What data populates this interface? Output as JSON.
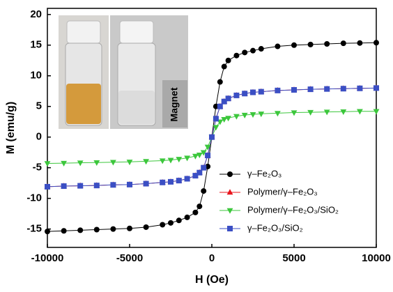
{
  "chart_data": {
    "type": "line",
    "x_label": "H (Oe)",
    "y_label": "M (emu/g)",
    "inset_label": "Magnet",
    "xlim": [
      -10000,
      10000
    ],
    "xticks": [
      -10000,
      -5000,
      0,
      5000,
      10000
    ],
    "ylim": [
      -18,
      21
    ],
    "yticks": [
      -15,
      -10,
      -5,
      0,
      5,
      10,
      15,
      20
    ],
    "legend": "lower right",
    "x": [
      -10000,
      -9000,
      -8000,
      -7000,
      -6000,
      -5000,
      -4000,
      -3000,
      -2500,
      -2000,
      -1500,
      -1000,
      -750,
      -500,
      -250,
      0,
      250,
      500,
      750,
      1000,
      1500,
      2000,
      2500,
      3000,
      4000,
      5000,
      6000,
      7000,
      8000,
      9000,
      10000
    ],
    "series": [
      {
        "name": "γ–Fe₂O₃",
        "color": "#000000",
        "marker": "circle",
        "values": [
          -15.4,
          -15.3,
          -15.2,
          -15.1,
          -15.0,
          -14.9,
          -14.7,
          -14.3,
          -14.0,
          -13.6,
          -13.1,
          -12.3,
          -11.3,
          -8.8,
          -4.8,
          0,
          5.0,
          9.0,
          11.5,
          12.5,
          13.3,
          13.8,
          14.1,
          14.4,
          14.8,
          15.0,
          15.1,
          15.2,
          15.3,
          15.35,
          15.4
        ]
      },
      {
        "name": "Polymer/γ–Fe₂O₃",
        "color": "#e8141c",
        "marker": "triangle-up",
        "values": [
          -8.1,
          -8.0,
          -7.95,
          -7.9,
          -7.8,
          -7.75,
          -7.6,
          -7.4,
          -7.3,
          -7.1,
          -6.8,
          -6.3,
          -5.8,
          -5.0,
          -3.0,
          0,
          3.0,
          5.0,
          5.8,
          6.3,
          6.8,
          7.1,
          7.3,
          7.4,
          7.6,
          7.7,
          7.8,
          7.85,
          7.9,
          7.95,
          8.0
        ]
      },
      {
        "name": "Polymer/γ–Fe₂O₃/SiO₂",
        "color": "#3cc73c",
        "marker": "triangle-down",
        "values": [
          -4.3,
          -4.25,
          -4.2,
          -4.15,
          -4.1,
          -4.05,
          -3.95,
          -3.85,
          -3.75,
          -3.6,
          -3.4,
          -3.1,
          -2.9,
          -2.5,
          -1.6,
          0,
          1.6,
          2.5,
          2.9,
          3.1,
          3.4,
          3.6,
          3.7,
          3.8,
          3.9,
          4.0,
          4.05,
          4.1,
          4.15,
          4.2,
          4.2
        ]
      },
      {
        "name": "γ–Fe₂O₃/SiO₂",
        "color": "#3b4fc4",
        "marker": "square",
        "values": [
          -8.1,
          -8.0,
          -7.95,
          -7.9,
          -7.8,
          -7.75,
          -7.6,
          -7.4,
          -7.3,
          -7.1,
          -6.8,
          -6.3,
          -5.8,
          -5.0,
          -3.0,
          0,
          3.0,
          5.0,
          5.8,
          6.3,
          6.8,
          7.1,
          7.3,
          7.4,
          7.6,
          7.7,
          7.8,
          7.85,
          7.9,
          7.95,
          8.0
        ]
      }
    ]
  }
}
